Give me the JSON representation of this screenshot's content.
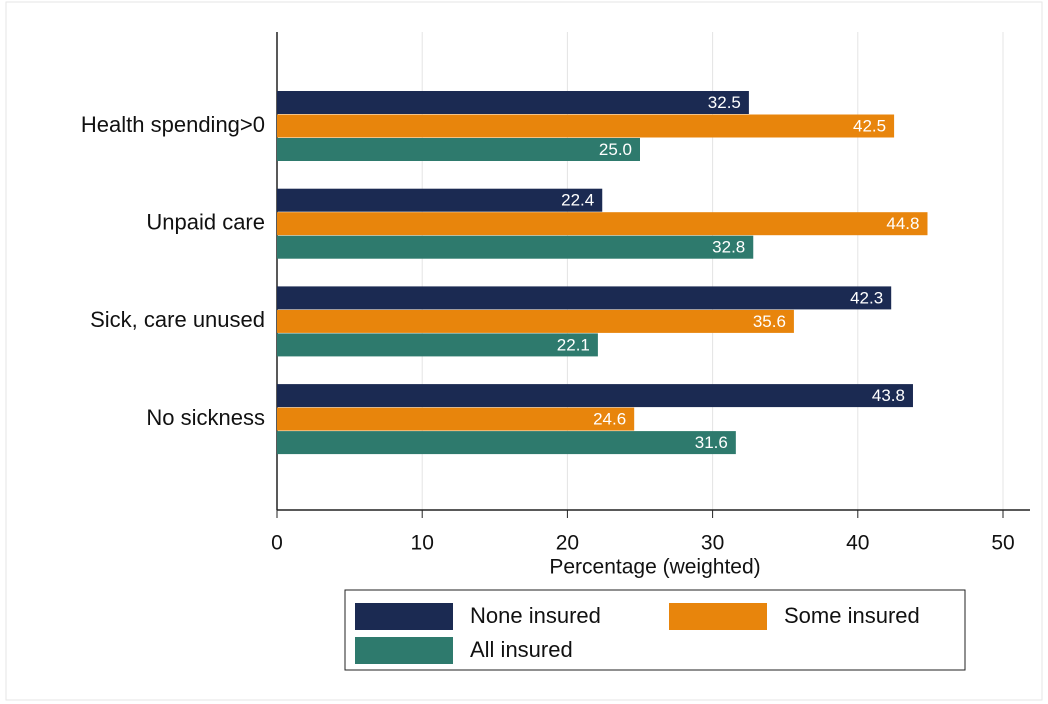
{
  "chart_data": {
    "type": "hbar",
    "x_label": "Percentage (weighted)",
    "categories": [
      "Health spending>0",
      "Unpaid care",
      "Sick, care unused",
      "No sickness"
    ],
    "series": [
      {
        "name": "None insured",
        "color": "#1b2a52",
        "values": [
          32.5,
          22.4,
          42.3,
          43.8
        ],
        "value_labels": [
          "32.5",
          "22.4",
          "42.3",
          "43.8"
        ]
      },
      {
        "name": "Some insured",
        "color": "#e8850c",
        "values": [
          42.5,
          44.8,
          35.6,
          24.6
        ],
        "value_labels": [
          "42.5",
          "44.8",
          "35.6",
          "24.6"
        ]
      },
      {
        "name": "All insured",
        "color": "#2e7a6d",
        "values": [
          25,
          32.8,
          22.1,
          31.6
        ],
        "value_labels": [
          "25.0",
          "32.8",
          "22.1",
          "31.6"
        ]
      }
    ],
    "xlim": [
      0,
      50
    ],
    "xticks": [
      0,
      10,
      20,
      30,
      40,
      50
    ],
    "grid": true,
    "legend": "bottom"
  }
}
